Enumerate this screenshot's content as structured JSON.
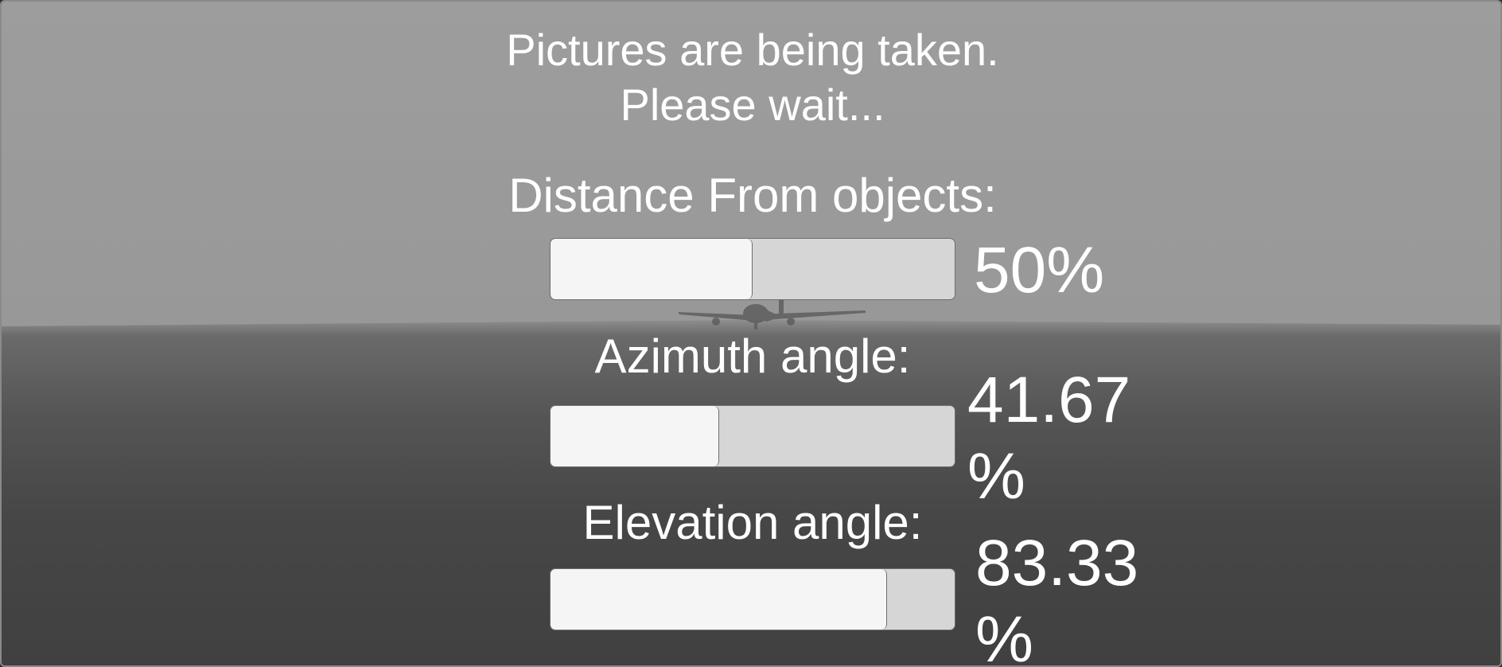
{
  "status": {
    "line1": "Pictures are being taken.",
    "line2": "Please wait..."
  },
  "distance": {
    "label": "Distance From objects:",
    "value_text": "50%",
    "progress_fraction": 0.5
  },
  "azimuth": {
    "label": "Azimuth angle:",
    "value_text": "41.67 %",
    "progress_fraction": 0.4167
  },
  "elevation": {
    "label": "Elevation angle:",
    "value_text": "83.33 %",
    "progress_fraction": 0.8333
  },
  "colors": {
    "sky": "#9d9d9d",
    "ground": "#444444",
    "bar_track": "#d6d6d6",
    "bar_fill": "#f5f5f5",
    "text": "#ffffff"
  },
  "icons": {
    "airplane": "airplane-icon"
  }
}
